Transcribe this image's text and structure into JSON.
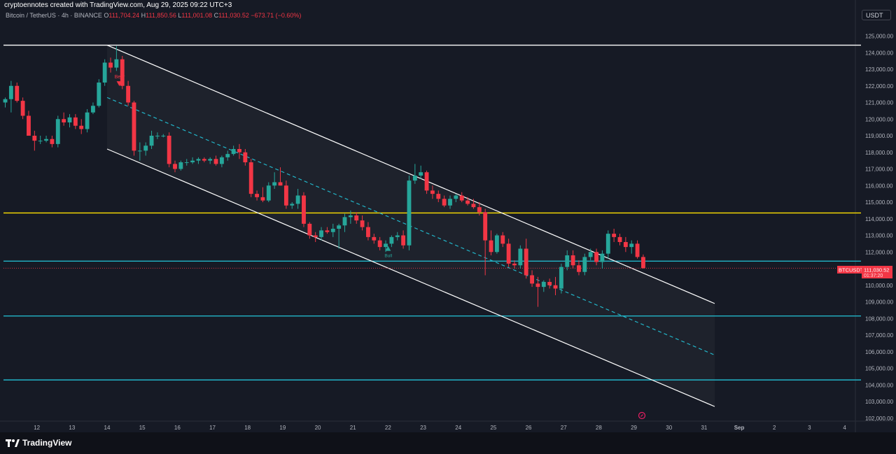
{
  "header": {
    "credit": "cryptoennotes created with TradingView.com, Aug 29, 2025 09:22 UTC+3",
    "symbol": "Bitcoin / TetherUS · 4h · BINANCE",
    "open_label": "O",
    "open": "111,704.24",
    "high_label": "H",
    "high": "111,850.56",
    "low_label": "L",
    "low": "111,001.08",
    "close_label": "C",
    "close": "111,030.52",
    "change": "−673.71 (−0.60%)"
  },
  "currency_button": "USDT",
  "footer": {
    "logo_text": "TradingView"
  },
  "price_label": {
    "symbol": "BTCUSDT",
    "price": "111,030.52",
    "countdown": "01:37:20"
  },
  "colors": {
    "up": "#26a69a",
    "down": "#f23645",
    "level": "#22b5c8",
    "resistance": "#ffe100",
    "channel": "#ffffff",
    "background": "#161a25"
  },
  "chart_data": {
    "type": "candlestick",
    "ylim": [
      101700,
      125500
    ],
    "y_ticks": [
      "125,000.00",
      "124,000.00",
      "123,000.00",
      "122,000.00",
      "121,000.00",
      "120,000.00",
      "119,000.00",
      "118,000.00",
      "117,000.00",
      "116,000.00",
      "115,000.00",
      "114,000.00",
      "113,000.00",
      "112,000.00",
      "111,000.00",
      "110,000.00",
      "109,000.00",
      "108,000.00",
      "107,000.00",
      "106,000.00",
      "105,000.00",
      "104,000.00",
      "103,000.00",
      "102,000.00"
    ],
    "x_ticks": [
      "12",
      "13",
      "14",
      "15",
      "16",
      "17",
      "18",
      "19",
      "20",
      "21",
      "22",
      "23",
      "24",
      "25",
      "26",
      "27",
      "28",
      "29",
      "30",
      "31",
      "Sep",
      "2",
      "3",
      "4"
    ],
    "horizontal_levels": [
      {
        "price": 124450,
        "color": "#ffffff"
      },
      {
        "price": 114350,
        "color": "#ffe100"
      },
      {
        "price": 111450,
        "color": "#22b5c8"
      },
      {
        "price": 108150,
        "color": "#22b5c8"
      },
      {
        "price": 104300,
        "color": "#22b5c8"
      }
    ],
    "channel": {
      "upper": [
        [
          14.0,
          124450
        ],
        [
          31.3,
          108900
        ]
      ],
      "lower": [
        [
          14.0,
          118200
        ],
        [
          31.3,
          102700
        ]
      ],
      "mid": [
        [
          14.0,
          121300
        ],
        [
          31.3,
          105800
        ]
      ]
    },
    "annotations": [
      {
        "text": "Bear",
        "day": 14.35,
        "price": 122700
      },
      {
        "text": "Bull",
        "day": 22.0,
        "price": 111650
      }
    ],
    "candles": [
      {
        "o": 121000,
        "h": 121300,
        "l": 120700,
        "c": 121200
      },
      {
        "o": 121200,
        "h": 122300,
        "l": 120400,
        "c": 122000
      },
      {
        "o": 122000,
        "h": 122200,
        "l": 121000,
        "c": 121100
      },
      {
        "o": 121100,
        "h": 121300,
        "l": 120000,
        "c": 120200
      },
      {
        "o": 120200,
        "h": 120500,
        "l": 119000,
        "c": 119000
      },
      {
        "o": 119000,
        "h": 119300,
        "l": 118100,
        "c": 118700
      },
      {
        "o": 118700,
        "h": 119000,
        "l": 118500,
        "c": 118700
      },
      {
        "o": 118700,
        "h": 119000,
        "l": 118600,
        "c": 118800
      },
      {
        "o": 118800,
        "h": 119000,
        "l": 118300,
        "c": 118500
      },
      {
        "o": 118500,
        "h": 120200,
        "l": 118300,
        "c": 120000
      },
      {
        "o": 120000,
        "h": 120400,
        "l": 119600,
        "c": 119800
      },
      {
        "o": 119800,
        "h": 120300,
        "l": 119500,
        "c": 120100
      },
      {
        "o": 120100,
        "h": 120300,
        "l": 119400,
        "c": 119600
      },
      {
        "o": 119600,
        "h": 120000,
        "l": 119100,
        "c": 119400
      },
      {
        "o": 119400,
        "h": 120600,
        "l": 119200,
        "c": 120400
      },
      {
        "o": 120400,
        "h": 121000,
        "l": 120300,
        "c": 120800
      },
      {
        "o": 120800,
        "h": 122400,
        "l": 120700,
        "c": 122200
      },
      {
        "o": 122200,
        "h": 123600,
        "l": 122000,
        "c": 123400
      },
      {
        "o": 123400,
        "h": 123700,
        "l": 122800,
        "c": 123100
      },
      {
        "o": 123100,
        "h": 124400,
        "l": 122900,
        "c": 123600
      },
      {
        "o": 123600,
        "h": 123800,
        "l": 121800,
        "c": 122000
      },
      {
        "o": 122000,
        "h": 122300,
        "l": 120800,
        "c": 121000
      },
      {
        "o": 121000,
        "h": 121100,
        "l": 117800,
        "c": 118100
      },
      {
        "o": 118100,
        "h": 118600,
        "l": 117500,
        "c": 118100
      },
      {
        "o": 118100,
        "h": 118600,
        "l": 117800,
        "c": 118400
      },
      {
        "o": 118400,
        "h": 119300,
        "l": 118200,
        "c": 119000
      },
      {
        "o": 119000,
        "h": 119200,
        "l": 118800,
        "c": 119000
      },
      {
        "o": 119000,
        "h": 119100,
        "l": 118900,
        "c": 119000
      },
      {
        "o": 119000,
        "h": 119200,
        "l": 117100,
        "c": 117300
      },
      {
        "o": 117300,
        "h": 117500,
        "l": 116800,
        "c": 117000
      },
      {
        "o": 117000,
        "h": 117500,
        "l": 116900,
        "c": 117400
      },
      {
        "o": 117400,
        "h": 117600,
        "l": 117200,
        "c": 117400
      },
      {
        "o": 117400,
        "h": 117700,
        "l": 117300,
        "c": 117500
      },
      {
        "o": 117500,
        "h": 117700,
        "l": 117300,
        "c": 117600
      },
      {
        "o": 117600,
        "h": 117700,
        "l": 117400,
        "c": 117500
      },
      {
        "o": 117500,
        "h": 117700,
        "l": 117300,
        "c": 117600
      },
      {
        "o": 117600,
        "h": 117800,
        "l": 117200,
        "c": 117300
      },
      {
        "o": 117300,
        "h": 117800,
        "l": 117100,
        "c": 117700
      },
      {
        "o": 117700,
        "h": 118100,
        "l": 117500,
        "c": 117900
      },
      {
        "o": 117900,
        "h": 118400,
        "l": 117800,
        "c": 118200
      },
      {
        "o": 118200,
        "h": 118500,
        "l": 117600,
        "c": 118000
      },
      {
        "o": 118000,
        "h": 118200,
        "l": 117200,
        "c": 117400
      },
      {
        "o": 117400,
        "h": 117600,
        "l": 115300,
        "c": 115500
      },
      {
        "o": 115500,
        "h": 115700,
        "l": 115100,
        "c": 115300
      },
      {
        "o": 115300,
        "h": 115900,
        "l": 115000,
        "c": 115100
      },
      {
        "o": 115100,
        "h": 116200,
        "l": 115000,
        "c": 116000
      },
      {
        "o": 116000,
        "h": 116800,
        "l": 115800,
        "c": 116200
      },
      {
        "o": 116200,
        "h": 117100,
        "l": 116000,
        "c": 116000
      },
      {
        "o": 116000,
        "h": 116300,
        "l": 114600,
        "c": 114800
      },
      {
        "o": 114800,
        "h": 115000,
        "l": 114600,
        "c": 114900
      },
      {
        "o": 114900,
        "h": 115800,
        "l": 114600,
        "c": 115400
      },
      {
        "o": 115400,
        "h": 115600,
        "l": 113500,
        "c": 113700
      },
      {
        "o": 113700,
        "h": 113800,
        "l": 112800,
        "c": 113000
      },
      {
        "o": 113000,
        "h": 113200,
        "l": 112600,
        "c": 112900
      },
      {
        "o": 112900,
        "h": 113500,
        "l": 112700,
        "c": 113300
      },
      {
        "o": 113300,
        "h": 113500,
        "l": 113100,
        "c": 113200
      },
      {
        "o": 113200,
        "h": 113700,
        "l": 112900,
        "c": 113400
      },
      {
        "o": 113400,
        "h": 113700,
        "l": 112200,
        "c": 113600
      },
      {
        "o": 113600,
        "h": 114300,
        "l": 113200,
        "c": 114100
      },
      {
        "o": 114100,
        "h": 114500,
        "l": 113700,
        "c": 114200
      },
      {
        "o": 114200,
        "h": 114400,
        "l": 113700,
        "c": 113900
      },
      {
        "o": 113900,
        "h": 114200,
        "l": 113300,
        "c": 113500
      },
      {
        "o": 113500,
        "h": 113800,
        "l": 112700,
        "c": 112900
      },
      {
        "o": 112900,
        "h": 113100,
        "l": 112500,
        "c": 112700
      },
      {
        "o": 112700,
        "h": 112900,
        "l": 112100,
        "c": 112300
      },
      {
        "o": 112300,
        "h": 112700,
        "l": 112000,
        "c": 112500
      },
      {
        "o": 112500,
        "h": 113000,
        "l": 112300,
        "c": 112900
      },
      {
        "o": 112900,
        "h": 113200,
        "l": 112700,
        "c": 113000
      },
      {
        "o": 113000,
        "h": 113300,
        "l": 112200,
        "c": 112400
      },
      {
        "o": 112400,
        "h": 116600,
        "l": 112100,
        "c": 116300
      },
      {
        "o": 116300,
        "h": 117300,
        "l": 116100,
        "c": 116600
      },
      {
        "o": 116600,
        "h": 117200,
        "l": 116400,
        "c": 116800
      },
      {
        "o": 116800,
        "h": 116900,
        "l": 115500,
        "c": 115700
      },
      {
        "o": 115700,
        "h": 116000,
        "l": 115200,
        "c": 115500
      },
      {
        "o": 115500,
        "h": 115700,
        "l": 115000,
        "c": 115200
      },
      {
        "o": 115200,
        "h": 115400,
        "l": 114700,
        "c": 114800
      },
      {
        "o": 114800,
        "h": 115400,
        "l": 114600,
        "c": 115200
      },
      {
        "o": 115200,
        "h": 115500,
        "l": 115000,
        "c": 115400
      },
      {
        "o": 115400,
        "h": 115600,
        "l": 115000,
        "c": 115100
      },
      {
        "o": 115100,
        "h": 115300,
        "l": 114800,
        "c": 114900
      },
      {
        "o": 114900,
        "h": 115200,
        "l": 114600,
        "c": 114700
      },
      {
        "o": 114700,
        "h": 115000,
        "l": 114200,
        "c": 114400
      },
      {
        "o": 114400,
        "h": 114600,
        "l": 110600,
        "c": 112700
      },
      {
        "o": 112700,
        "h": 113300,
        "l": 111800,
        "c": 112000
      },
      {
        "o": 112000,
        "h": 113100,
        "l": 111900,
        "c": 113000
      },
      {
        "o": 113000,
        "h": 113200,
        "l": 112300,
        "c": 112500
      },
      {
        "o": 112500,
        "h": 112800,
        "l": 111100,
        "c": 111300
      },
      {
        "o": 111300,
        "h": 111500,
        "l": 111000,
        "c": 111200
      },
      {
        "o": 111200,
        "h": 112400,
        "l": 111000,
        "c": 112200
      },
      {
        "o": 112200,
        "h": 112800,
        "l": 110400,
        "c": 110600
      },
      {
        "o": 110600,
        "h": 110900,
        "l": 109900,
        "c": 110100
      },
      {
        "o": 110100,
        "h": 110500,
        "l": 108700,
        "c": 109900
      },
      {
        "o": 109900,
        "h": 110300,
        "l": 109600,
        "c": 110200
      },
      {
        "o": 110200,
        "h": 110400,
        "l": 109800,
        "c": 110000
      },
      {
        "o": 110000,
        "h": 110500,
        "l": 109400,
        "c": 109800
      },
      {
        "o": 109800,
        "h": 111300,
        "l": 109500,
        "c": 111100
      },
      {
        "o": 111100,
        "h": 112100,
        "l": 110900,
        "c": 111800
      },
      {
        "o": 111800,
        "h": 112100,
        "l": 111000,
        "c": 111200
      },
      {
        "o": 111200,
        "h": 111500,
        "l": 110600,
        "c": 110800
      },
      {
        "o": 110800,
        "h": 111900,
        "l": 110600,
        "c": 111700
      },
      {
        "o": 111700,
        "h": 112200,
        "l": 111500,
        "c": 112000
      },
      {
        "o": 112000,
        "h": 112200,
        "l": 111200,
        "c": 111400
      },
      {
        "o": 111400,
        "h": 112100,
        "l": 111000,
        "c": 111900
      },
      {
        "o": 111900,
        "h": 113300,
        "l": 111600,
        "c": 113100
      },
      {
        "o": 113100,
        "h": 113400,
        "l": 112600,
        "c": 112900
      },
      {
        "o": 112900,
        "h": 113100,
        "l": 112400,
        "c": 112600
      },
      {
        "o": 112600,
        "h": 112900,
        "l": 112000,
        "c": 112300
      },
      {
        "o": 112300,
        "h": 112700,
        "l": 111900,
        "c": 112500
      },
      {
        "o": 112500,
        "h": 112700,
        "l": 111600,
        "c": 111700
      },
      {
        "o": 111700,
        "h": 111850,
        "l": 111000,
        "c": 111030
      }
    ]
  }
}
